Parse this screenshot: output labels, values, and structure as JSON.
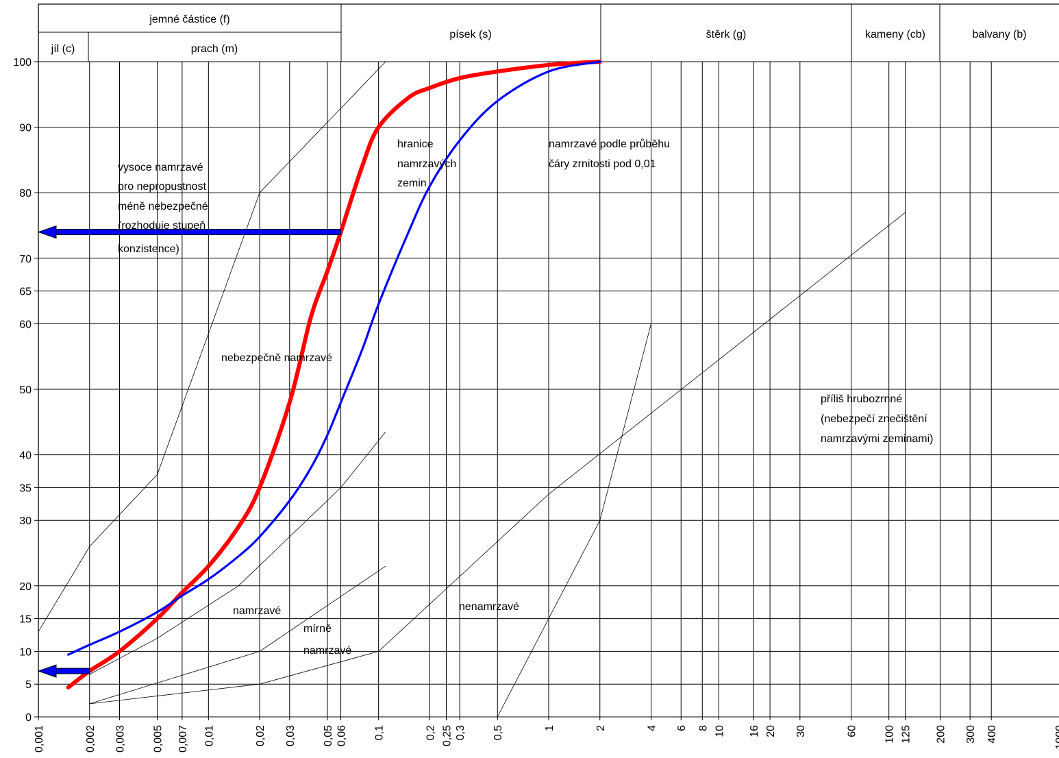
{
  "chart_data": {
    "type": "line",
    "x_scale": "log",
    "xlim": [
      0.001,
      1000
    ],
    "ylim": [
      0,
      100
    ],
    "grid": true,
    "legend": "none",
    "x_ticks": [
      "0,001",
      "0,002",
      "0,003",
      "0,005",
      "0,007",
      "0,01",
      "0,02",
      "0,03",
      "0,05",
      "0,06",
      "0,1",
      "0,2",
      "0,25",
      "0,3",
      "0,5",
      "1",
      "2",
      "4",
      "6",
      "8",
      "10",
      "16",
      "20",
      "30",
      "60",
      "100",
      "125",
      "200",
      "300",
      "400",
      "1000"
    ],
    "y_ticks": [
      "0",
      "5",
      "10",
      "15",
      "20",
      "30",
      "35",
      "40",
      "50",
      "60",
      "65",
      "70",
      "80",
      "90",
      "100"
    ],
    "header": {
      "fine_particles": "jemné částice (f)",
      "clay": "jíl (c)",
      "silt": "prach (m)",
      "sand": "písek (s)",
      "gravel": "štěrk (g)",
      "cobbles": "kameny (cb)",
      "boulders": "balvany (b)"
    },
    "annotations": {
      "highly_frost": [
        "vysoce namrzavé",
        "pro nepropustnost",
        "méně nebezpečné",
        "(rozhoduje stupeň",
        "konzistence)"
      ],
      "frost_boundary": [
        "hranice",
        "namrzavých",
        "zemin"
      ],
      "frost_by_curve": [
        "namrzavé podle průběhu",
        "čáry zrnitosti pod 0,01"
      ],
      "dangerously_frost": "nebezpečně namrzavé",
      "too_coarse": [
        "příliš hrubozrnné",
        "(nebezpečí znečištění",
        "namrzavými zeminami)"
      ],
      "frost": "namrzavé",
      "slightly_frost": [
        "mírně",
        "namrzavé"
      ],
      "non_frost": "nenamrzavé"
    },
    "series": [
      {
        "color": "#ff0000",
        "x": [
          0.0015,
          0.002,
          0.003,
          0.005,
          0.007,
          0.01,
          0.015,
          0.02,
          0.03,
          0.04,
          0.05,
          0.06,
          0.08,
          0.1,
          0.15,
          0.2,
          0.3,
          0.5,
          1,
          2
        ],
        "y": [
          4.5,
          7,
          10,
          15,
          19,
          23,
          29,
          35,
          48,
          61,
          68,
          74,
          84,
          90,
          94.5,
          96,
          97.5,
          98.5,
          99.5,
          100
        ]
      },
      {
        "color": "#0000ff",
        "x": [
          0.0015,
          0.002,
          0.003,
          0.005,
          0.007,
          0.01,
          0.015,
          0.02,
          0.03,
          0.04,
          0.05,
          0.06,
          0.08,
          0.1,
          0.15,
          0.2,
          0.3,
          0.5,
          1,
          2
        ],
        "y": [
          9.5,
          11,
          13,
          16,
          18.5,
          21,
          24.5,
          27.5,
          33,
          38,
          43,
          48,
          56,
          63,
          74,
          81,
          88,
          94,
          98.5,
          100
        ]
      }
    ],
    "boundary_lines": [
      {
        "x": [
          0.001,
          0.002,
          0.005,
          0.02,
          0.11
        ],
        "y": [
          13,
          26,
          37,
          80,
          100
        ]
      },
      {
        "x": [
          0.002,
          0.005,
          0.015,
          0.06,
          0.11
        ],
        "y": [
          6.5,
          12,
          20,
          35,
          43.5
        ]
      },
      {
        "x": [
          0.002,
          0.02,
          0.11
        ],
        "y": [
          2,
          10,
          23
        ]
      },
      {
        "x": [
          0.002,
          0.02,
          0.1,
          1,
          125
        ],
        "y": [
          2,
          5,
          10,
          34,
          77
        ]
      },
      {
        "x": [
          0.5,
          1,
          2,
          4
        ],
        "y": [
          0,
          15,
          30,
          60
        ]
      }
    ],
    "arrows": [
      {
        "y": 74,
        "x_from": 0.06,
        "x_to": 0.001,
        "color": "#0000ff"
      },
      {
        "y": 7,
        "x_from": 0.002,
        "x_to": 0.001,
        "color": "#0000ff"
      }
    ]
  }
}
